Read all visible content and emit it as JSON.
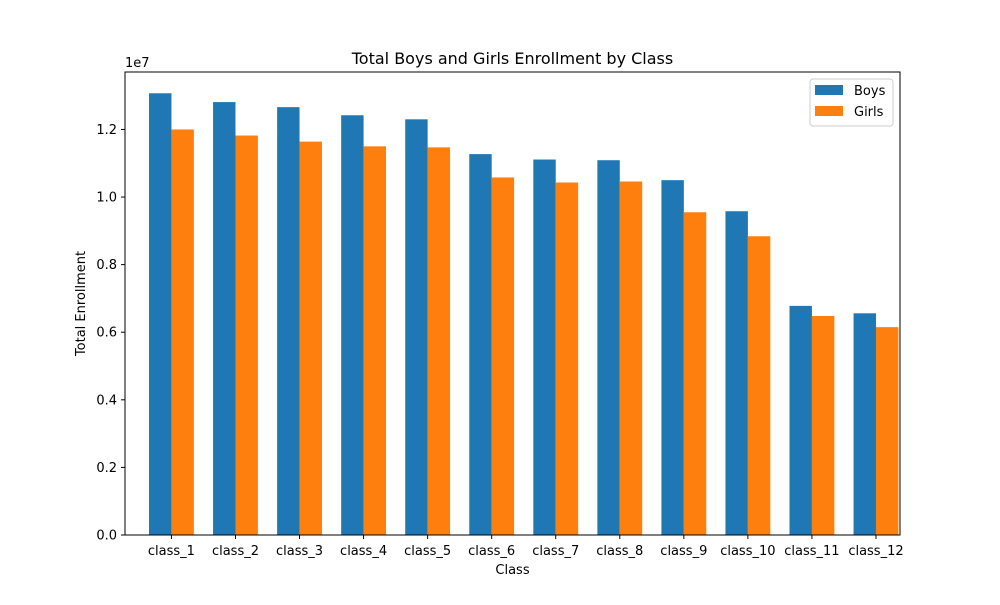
{
  "chart_data": {
    "type": "bar",
    "title": "Total Boys and Girls Enrollment by Class",
    "xlabel": "Class",
    "ylabel": "Total Enrollment",
    "y_offset_label": "1e7",
    "ylim": [
      0,
      1.37
    ],
    "yticks": [
      0.0,
      0.2,
      0.4,
      0.6,
      0.8,
      1.0,
      1.2
    ],
    "ytick_labels": [
      "0.0",
      "0.2",
      "0.4",
      "0.6",
      "0.8",
      "1.0",
      "1.2"
    ],
    "categories": [
      "class_1",
      "class_2",
      "class_3",
      "class_4",
      "class_5",
      "class_6",
      "class_7",
      "class_8",
      "class_9",
      "class_10",
      "class_11",
      "class_12"
    ],
    "series": [
      {
        "name": "Boys",
        "color": "#1f77b4",
        "values": [
          1.307,
          1.281,
          1.266,
          1.242,
          1.23,
          1.127,
          1.111,
          1.109,
          1.05,
          0.958,
          0.678,
          0.656
        ]
      },
      {
        "name": "Girls",
        "color": "#ff7f0e",
        "values": [
          1.2,
          1.182,
          1.164,
          1.15,
          1.147,
          1.058,
          1.043,
          1.046,
          0.955,
          0.884,
          0.648,
          0.615
        ]
      }
    ],
    "legend_position": "top-right",
    "grid": false
  }
}
